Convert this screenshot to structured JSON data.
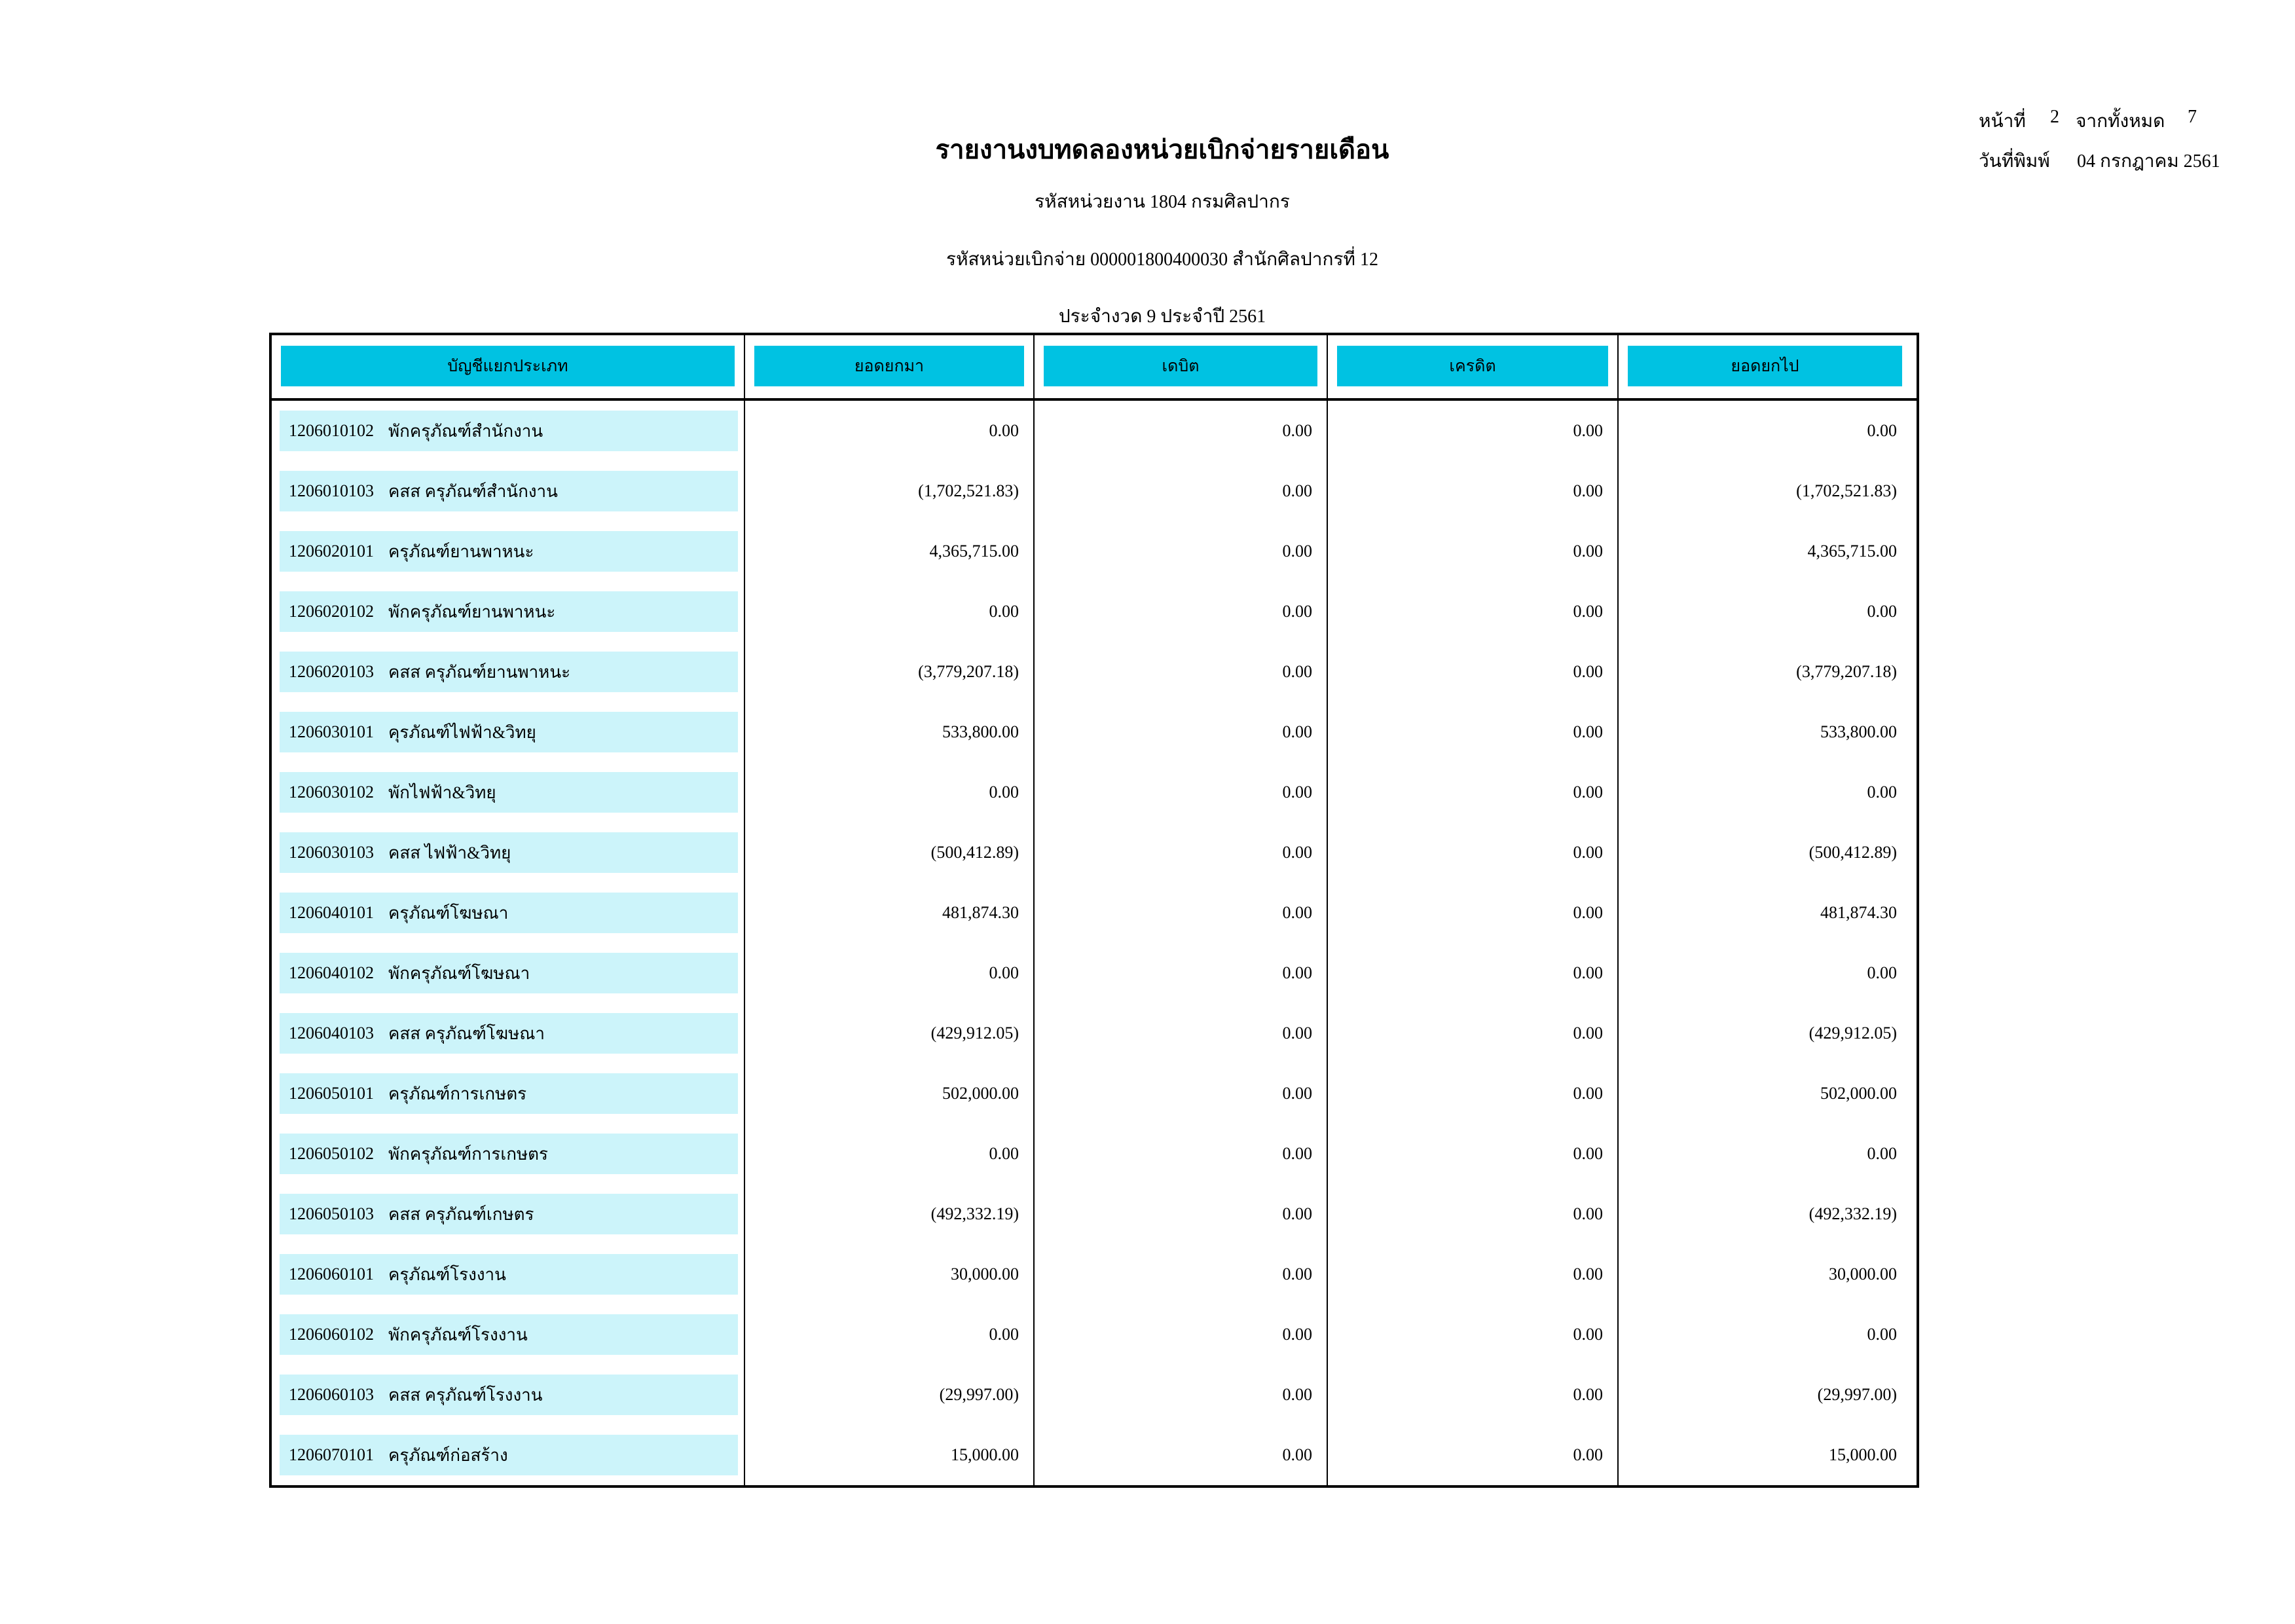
{
  "report": {
    "title": "รายงานงบทดลองหน่วยเบิกจ่ายรายเดือน",
    "agency_line": "รหัสหน่วยงาน 1804 กรมศิลปากร",
    "unit_line": "รหัสหน่วยเบิกจ่าย 000001800400030 สำนักศิลปากรที่ 12",
    "period_line": "ประจำงวด 9 ประจำปี 2561"
  },
  "page_info": {
    "page_label": "หน้าที่",
    "page_number": "2",
    "total_label": "จากทั้งหมด",
    "total_pages": "7",
    "print_date_label": "วันที่พิมพ์",
    "print_date": "04 กรกฎาคม 2561"
  },
  "colors": {
    "header_bg": "#00C2E2",
    "row_band_bg": "#CCF4FA"
  },
  "table": {
    "columns": {
      "account": "บัญชีแยกประเภท",
      "opening": "ยอดยกมา",
      "debit": "เดบิต",
      "credit": "เครดิต",
      "closing": "ยอดยกไป"
    },
    "rows": [
      {
        "code": "1206010102",
        "name": "พักครุภัณฑ์สำนักงาน",
        "opening": "0.00",
        "debit": "0.00",
        "credit": "0.00",
        "closing": "0.00"
      },
      {
        "code": "1206010103",
        "name": "คสส ครุภัณฑ์สำนักงาน",
        "opening": "(1,702,521.83)",
        "debit": "0.00",
        "credit": "0.00",
        "closing": "(1,702,521.83)"
      },
      {
        "code": "1206020101",
        "name": "ครุภัณฑ์ยานพาหนะ",
        "opening": "4,365,715.00",
        "debit": "0.00",
        "credit": "0.00",
        "closing": "4,365,715.00"
      },
      {
        "code": "1206020102",
        "name": "พักครุภัณฑ์ยานพาหนะ",
        "opening": "0.00",
        "debit": "0.00",
        "credit": "0.00",
        "closing": "0.00"
      },
      {
        "code": "1206020103",
        "name": "คสส ครุภัณฑ์ยานพาหนะ",
        "opening": "(3,779,207.18)",
        "debit": "0.00",
        "credit": "0.00",
        "closing": "(3,779,207.18)"
      },
      {
        "code": "1206030101",
        "name": "คุรภัณฑ์ไฟฟ้า&วิทยุ",
        "opening": "533,800.00",
        "debit": "0.00",
        "credit": "0.00",
        "closing": "533,800.00"
      },
      {
        "code": "1206030102",
        "name": "พักไฟฟ้า&วิทยุ",
        "opening": "0.00",
        "debit": "0.00",
        "credit": "0.00",
        "closing": "0.00"
      },
      {
        "code": "1206030103",
        "name": "คสส ไฟฟ้า&วิทยุ",
        "opening": "(500,412.89)",
        "debit": "0.00",
        "credit": "0.00",
        "closing": "(500,412.89)"
      },
      {
        "code": "1206040101",
        "name": "ครุภัณฑ์โฆษณา",
        "opening": "481,874.30",
        "debit": "0.00",
        "credit": "0.00",
        "closing": "481,874.30"
      },
      {
        "code": "1206040102",
        "name": "พักครุภัณฑ์โฆษณา",
        "opening": "0.00",
        "debit": "0.00",
        "credit": "0.00",
        "closing": "0.00"
      },
      {
        "code": "1206040103",
        "name": "คสส ครุภัณฑ์โฆษณา",
        "opening": "(429,912.05)",
        "debit": "0.00",
        "credit": "0.00",
        "closing": "(429,912.05)"
      },
      {
        "code": "1206050101",
        "name": "ครุภัณฑ์การเกษตร",
        "opening": "502,000.00",
        "debit": "0.00",
        "credit": "0.00",
        "closing": "502,000.00"
      },
      {
        "code": "1206050102",
        "name": "พักครุภัณฑ์การเกษตร",
        "opening": "0.00",
        "debit": "0.00",
        "credit": "0.00",
        "closing": "0.00"
      },
      {
        "code": "1206050103",
        "name": "คสส ครุภัณฑ์เกษตร",
        "opening": "(492,332.19)",
        "debit": "0.00",
        "credit": "0.00",
        "closing": "(492,332.19)"
      },
      {
        "code": "1206060101",
        "name": "ครุภัณฑ์โรงงาน",
        "opening": "30,000.00",
        "debit": "0.00",
        "credit": "0.00",
        "closing": "30,000.00"
      },
      {
        "code": "1206060102",
        "name": "พักครุภัณฑ์โรงงาน",
        "opening": "0.00",
        "debit": "0.00",
        "credit": "0.00",
        "closing": "0.00"
      },
      {
        "code": "1206060103",
        "name": "คสส ครุภัณฑ์โรงงาน",
        "opening": "(29,997.00)",
        "debit": "0.00",
        "credit": "0.00",
        "closing": "(29,997.00)"
      },
      {
        "code": "1206070101",
        "name": "ครุภัณฑ์ก่อสร้าง",
        "opening": "15,000.00",
        "debit": "0.00",
        "credit": "0.00",
        "closing": "15,000.00"
      }
    ]
  }
}
